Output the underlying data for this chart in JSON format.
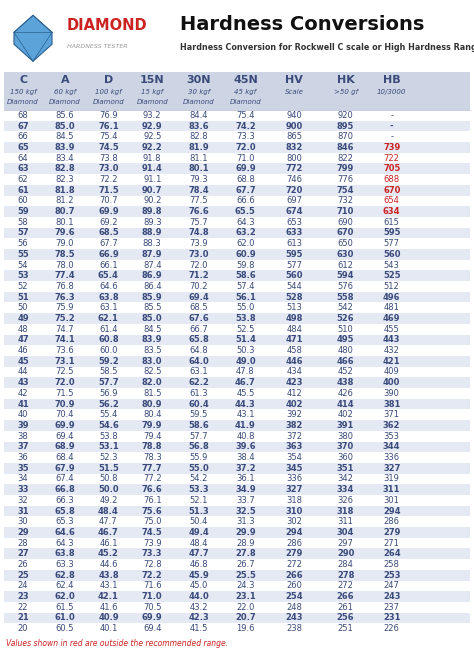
{
  "title": "Hardness Conversions",
  "subtitle": "Hardness Conversion for Rockwell C scale or High Hardness Range",
  "col_headers": [
    "C",
    "A",
    "D",
    "15N",
    "30N",
    "45N",
    "HV",
    "HK",
    "HB"
  ],
  "col_sub1": [
    "150 kgf",
    "60 kgf",
    "100 kgf",
    "15 kgf",
    "30 kgf",
    "45 kgf",
    "Scale",
    ">50 gf",
    "10/3000"
  ],
  "col_sub2": [
    "Diamond",
    "Diamond",
    "Diamond",
    "Diamond",
    "Diamond",
    "Diamond",
    "",
    "",
    ""
  ],
  "rows": [
    [
      68,
      85.6,
      76.9,
      93.2,
      84.4,
      75.4,
      940,
      920,
      "-"
    ],
    [
      67,
      85.0,
      76.1,
      92.9,
      83.6,
      74.2,
      900,
      895,
      "-"
    ],
    [
      66,
      84.5,
      75.4,
      92.5,
      82.8,
      73.3,
      865,
      870,
      "-"
    ],
    [
      65,
      83.9,
      74.5,
      92.2,
      81.9,
      72.0,
      832,
      846,
      "739"
    ],
    [
      64,
      83.4,
      73.8,
      91.8,
      81.1,
      71.0,
      800,
      822,
      "722"
    ],
    [
      63,
      82.8,
      73.0,
      91.4,
      80.1,
      69.9,
      772,
      799,
      "705"
    ],
    [
      62,
      82.3,
      72.2,
      91.1,
      79.3,
      68.8,
      746,
      776,
      "688"
    ],
    [
      61,
      81.8,
      71.5,
      90.7,
      78.4,
      67.7,
      720,
      754,
      "670"
    ],
    [
      60,
      81.2,
      70.7,
      90.2,
      77.5,
      66.6,
      697,
      732,
      "654"
    ],
    [
      59,
      80.7,
      69.9,
      89.8,
      76.6,
      65.5,
      674,
      710,
      "634"
    ],
    [
      58,
      80.1,
      69.2,
      89.3,
      75.7,
      64.3,
      653,
      690,
      615
    ],
    [
      57,
      79.6,
      68.5,
      88.9,
      74.8,
      63.2,
      633,
      670,
      595
    ],
    [
      56,
      79.0,
      67.7,
      88.3,
      73.9,
      62.0,
      613,
      650,
      577
    ],
    [
      55,
      78.5,
      66.9,
      87.9,
      73.0,
      60.9,
      595,
      630,
      560
    ],
    [
      54,
      78.0,
      66.1,
      87.4,
      72.0,
      59.8,
      577,
      612,
      543
    ],
    [
      53,
      77.4,
      65.4,
      86.9,
      71.2,
      58.6,
      560,
      594,
      525
    ],
    [
      52,
      76.8,
      64.6,
      86.4,
      70.2,
      57.4,
      544,
      576,
      512
    ],
    [
      51,
      76.3,
      63.8,
      85.9,
      69.4,
      56.1,
      528,
      558,
      496
    ],
    [
      50,
      75.9,
      63.1,
      85.5,
      68.5,
      55.0,
      513,
      542,
      481
    ],
    [
      49,
      75.2,
      62.1,
      85.0,
      67.6,
      53.8,
      498,
      526,
      469
    ],
    [
      48,
      74.7,
      61.4,
      84.5,
      66.7,
      52.5,
      484,
      510,
      455
    ],
    [
      47,
      74.1,
      60.8,
      83.9,
      65.8,
      51.4,
      471,
      495,
      443
    ],
    [
      46,
      73.6,
      60.0,
      83.5,
      64.8,
      50.3,
      458,
      480,
      432
    ],
    [
      45,
      73.1,
      59.2,
      83.0,
      64.0,
      49.0,
      446,
      466,
      421
    ],
    [
      44,
      72.5,
      58.5,
      82.5,
      63.1,
      47.8,
      434,
      452,
      409
    ],
    [
      43,
      72.0,
      57.7,
      82.0,
      62.2,
      46.7,
      423,
      438,
      400
    ],
    [
      42,
      71.5,
      56.9,
      81.5,
      61.3,
      45.5,
      412,
      426,
      390
    ],
    [
      41,
      70.9,
      56.2,
      80.9,
      60.4,
      44.3,
      402,
      414,
      381
    ],
    [
      40,
      70.4,
      55.4,
      80.4,
      59.5,
      43.1,
      392,
      402,
      371
    ],
    [
      39,
      69.9,
      54.6,
      79.9,
      58.6,
      41.9,
      382,
      391,
      362
    ],
    [
      38,
      69.4,
      53.8,
      79.4,
      57.7,
      40.8,
      372,
      380,
      353
    ],
    [
      37,
      68.9,
      53.1,
      78.8,
      56.8,
      39.6,
      363,
      370,
      344
    ],
    [
      36,
      68.4,
      52.3,
      78.3,
      55.9,
      38.4,
      354,
      360,
      336
    ],
    [
      35,
      67.9,
      51.5,
      77.7,
      55.0,
      37.2,
      345,
      351,
      327
    ],
    [
      34,
      67.4,
      50.8,
      77.2,
      54.2,
      36.1,
      336,
      342,
      319
    ],
    [
      33,
      66.8,
      50.0,
      76.6,
      53.3,
      34.9,
      327,
      334,
      311
    ],
    [
      32,
      66.3,
      49.2,
      76.1,
      52.1,
      33.7,
      318,
      326,
      301
    ],
    [
      31,
      65.8,
      48.4,
      75.6,
      51.3,
      32.5,
      310,
      318,
      294
    ],
    [
      30,
      65.3,
      47.7,
      75.0,
      50.4,
      31.3,
      302,
      311,
      286
    ],
    [
      29,
      64.6,
      46.7,
      74.5,
      49.4,
      29.9,
      294,
      304,
      279
    ],
    [
      28,
      64.3,
      46.1,
      73.9,
      48.4,
      28.9,
      286,
      297,
      271
    ],
    [
      27,
      63.8,
      45.2,
      73.3,
      47.7,
      27.8,
      279,
      290,
      264
    ],
    [
      26,
      63.3,
      44.6,
      72.8,
      46.8,
      26.7,
      272,
      284,
      258
    ],
    [
      25,
      62.8,
      43.8,
      72.2,
      45.9,
      25.5,
      266,
      278,
      253
    ],
    [
      24,
      62.4,
      43.1,
      71.6,
      45.0,
      24.3,
      260,
      272,
      247
    ],
    [
      23,
      62.0,
      42.1,
      71.0,
      44.0,
      23.1,
      254,
      266,
      243
    ],
    [
      22,
      61.5,
      41.6,
      70.5,
      43.2,
      22.0,
      248,
      261,
      237
    ],
    [
      21,
      61.0,
      40.9,
      69.9,
      42.3,
      20.7,
      243,
      256,
      231
    ],
    [
      20,
      60.5,
      40.1,
      69.4,
      41.5,
      19.6,
      238,
      251,
      226
    ]
  ],
  "red_hb_vals": [
    "739",
    "722",
    "705",
    "688",
    "670",
    "654",
    "634"
  ],
  "bg_color": "#ffffff",
  "header_bg": "#cdd5e5",
  "shaded_bg": "#e4e9f4",
  "text_color": "#3a4a7a",
  "text_color_red": "#cc2222",
  "footer_text": "Values shown in red are outside the recommended range.",
  "logo_text": "DIAMOND",
  "logo_sub": "HARDNESS TESTER",
  "figw": 4.74,
  "figh": 6.52,
  "dpi": 100
}
